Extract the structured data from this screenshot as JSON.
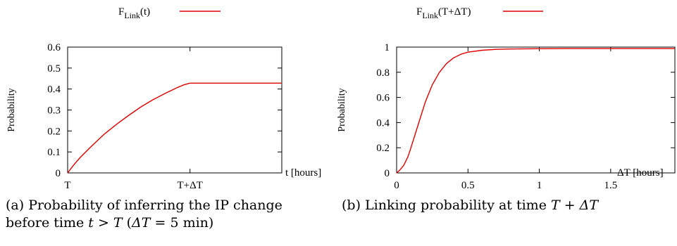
{
  "chart_data": [
    {
      "type": "line",
      "legend": {
        "position": "top",
        "label_main": "F",
        "label_sub": "Link",
        "label_arg": "(t)"
      },
      "ylabel": "Probability",
      "xlabel": "t [hours]",
      "x_tick_labels": [
        "T",
        "T+ΔT"
      ],
      "x_tick_values": [
        0,
        1
      ],
      "xlim": [
        0,
        1.75
      ],
      "ylim": [
        0,
        0.6
      ],
      "y_ticks": [
        "0",
        "0.1",
        "0.2",
        "0.3",
        "0.4",
        "0.5",
        "0.6"
      ],
      "y_tick_values": [
        0,
        0.1,
        0.2,
        0.3,
        0.4,
        0.5,
        0.6
      ],
      "series": [
        {
          "color": "#e00000",
          "x": [
            0,
            0.05,
            0.1,
            0.2,
            0.3,
            0.4,
            0.5,
            0.6,
            0.7,
            0.8,
            0.9,
            0.95,
            1.0,
            1.25,
            1.5,
            1.75
          ],
          "y": [
            0,
            0.038,
            0.072,
            0.13,
            0.185,
            0.232,
            0.275,
            0.315,
            0.35,
            0.38,
            0.408,
            0.42,
            0.428,
            0.428,
            0.428,
            0.428
          ]
        }
      ],
      "caption": {
        "line1": "(a) Probability of inferring the IP change",
        "line2_prefix": "before time ",
        "line2_t": "t",
        "line2_gt": " > ",
        "line2_T": "T",
        "line2_open": " (",
        "line2_dT": "ΔT",
        "line2_rest": " = 5 min)"
      }
    },
    {
      "type": "line",
      "legend": {
        "position": "top",
        "label_main": "F",
        "label_sub": "Link",
        "label_arg": "(T+ΔT)"
      },
      "ylabel": "Probability",
      "xlabel": "ΔT [hours]",
      "xlim": [
        0,
        1.95
      ],
      "ylim": [
        0,
        1
      ],
      "x_ticks": [
        "0",
        "0.5",
        "1",
        "1.5"
      ],
      "x_tick_values": [
        0,
        0.5,
        1,
        1.5
      ],
      "y_ticks": [
        "0",
        "0.2",
        "0.4",
        "0.6",
        "0.8",
        "1"
      ],
      "y_tick_values": [
        0,
        0.2,
        0.4,
        0.6,
        0.8,
        1
      ],
      "series": [
        {
          "color": "#e00000",
          "x": [
            0,
            0.02,
            0.05,
            0.08,
            0.1,
            0.15,
            0.2,
            0.25,
            0.3,
            0.35,
            0.4,
            0.45,
            0.5,
            0.6,
            0.7,
            0.8,
            1.0,
            1.2,
            1.5,
            1.95
          ],
          "y": [
            0,
            0.02,
            0.06,
            0.13,
            0.2,
            0.38,
            0.56,
            0.7,
            0.8,
            0.87,
            0.915,
            0.943,
            0.96,
            0.975,
            0.982,
            0.985,
            0.987,
            0.988,
            0.988,
            0.988
          ]
        }
      ],
      "caption": {
        "line1_prefix": "(b) Linking probability at time ",
        "line1_T": "T",
        "line1_plus": " + ",
        "line1_dT": "ΔT"
      }
    }
  ]
}
